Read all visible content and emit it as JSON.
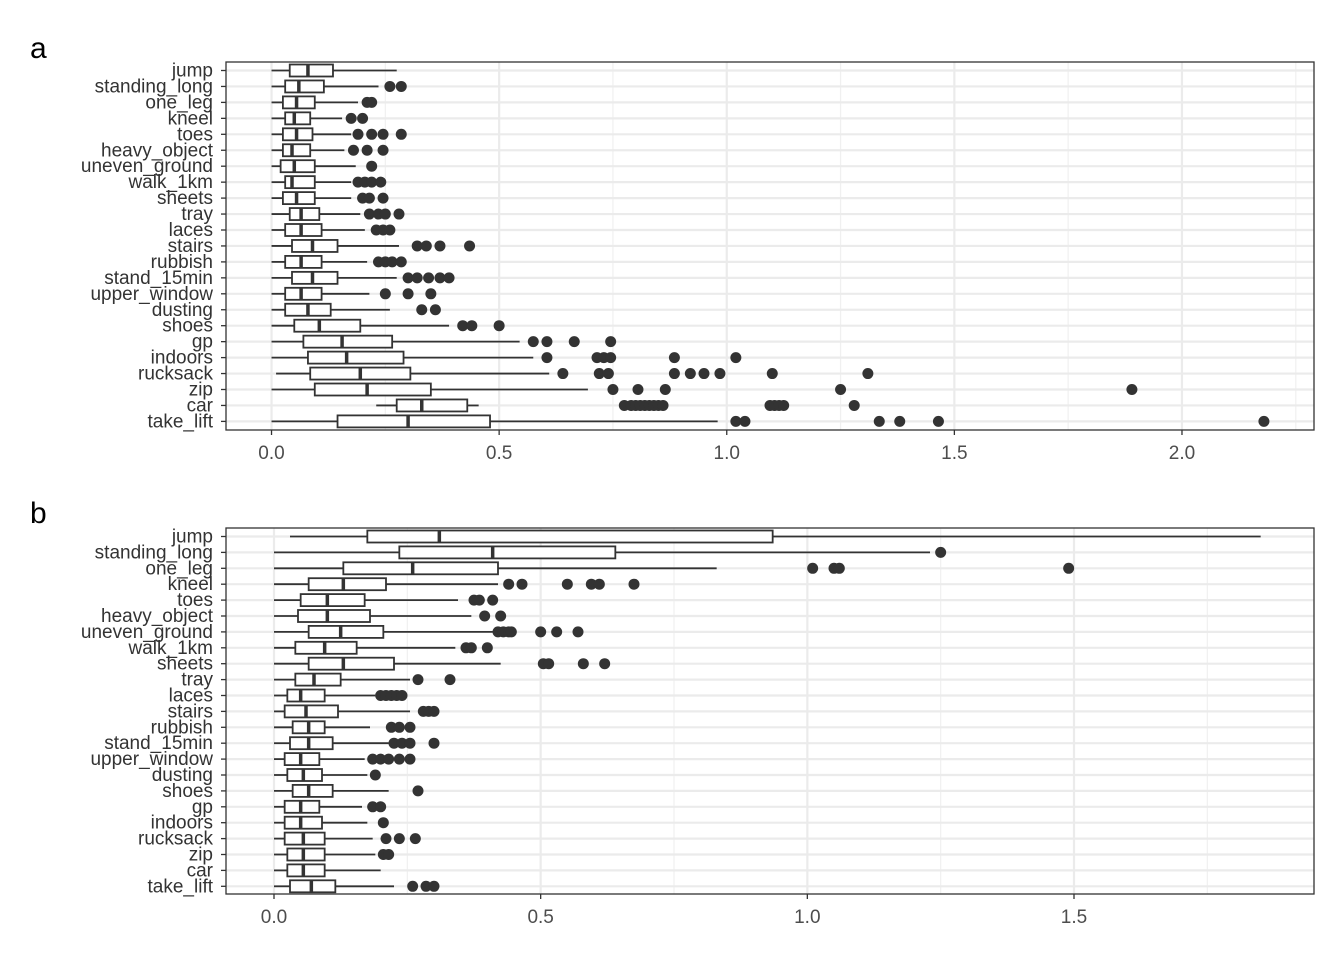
{
  "chart_data": [
    {
      "panel_label": "a",
      "type": "boxplot",
      "orientation": "horizontal",
      "xlim": [
        -0.1,
        2.29
      ],
      "xticks": [
        0.0,
        0.5,
        1.0,
        1.5,
        2.0
      ],
      "xtick_labels": [
        "0.0",
        "0.5",
        "1.0",
        "1.5",
        "2.0"
      ],
      "grid": true,
      "categories": [
        "jump",
        "standing_long",
        "one_leg",
        "kneel",
        "toes",
        "heavy_object",
        "uneven_ground",
        "walk_1km",
        "sheets",
        "tray",
        "laces",
        "stairs",
        "rubbish",
        "stand_15min",
        "upper_window",
        "dusting",
        "shoes",
        "gp",
        "indoors",
        "rucksack",
        "zip",
        "car",
        "take_lift"
      ],
      "boxes": [
        {
          "min": 0.0,
          "q1": 0.04,
          "median": 0.08,
          "q3": 0.135,
          "max": 0.275,
          "outliers": []
        },
        {
          "min": 0.0,
          "q1": 0.03,
          "median": 0.06,
          "q3": 0.115,
          "max": 0.235,
          "outliers": [
            0.26,
            0.285
          ]
        },
        {
          "min": 0.0,
          "q1": 0.025,
          "median": 0.055,
          "q3": 0.095,
          "max": 0.19,
          "outliers": [
            0.21,
            0.22
          ]
        },
        {
          "min": 0.0,
          "q1": 0.03,
          "median": 0.05,
          "q3": 0.085,
          "max": 0.155,
          "outliers": [
            0.175,
            0.2
          ]
        },
        {
          "min": 0.0,
          "q1": 0.025,
          "median": 0.055,
          "q3": 0.09,
          "max": 0.175,
          "outliers": [
            0.19,
            0.22,
            0.245,
            0.285
          ]
        },
        {
          "min": 0.0,
          "q1": 0.025,
          "median": 0.045,
          "q3": 0.085,
          "max": 0.16,
          "outliers": [
            0.18,
            0.21,
            0.245
          ]
        },
        {
          "min": 0.0,
          "q1": 0.02,
          "median": 0.05,
          "q3": 0.095,
          "max": 0.185,
          "outliers": [
            0.22
          ]
        },
        {
          "min": 0.0,
          "q1": 0.03,
          "median": 0.045,
          "q3": 0.095,
          "max": 0.175,
          "outliers": [
            0.19,
            0.205,
            0.22,
            0.24
          ]
        },
        {
          "min": 0.0,
          "q1": 0.025,
          "median": 0.055,
          "q3": 0.095,
          "max": 0.175,
          "outliers": [
            0.2,
            0.215,
            0.245
          ]
        },
        {
          "min": 0.0,
          "q1": 0.04,
          "median": 0.065,
          "q3": 0.105,
          "max": 0.195,
          "outliers": [
            0.215,
            0.235,
            0.25,
            0.28
          ]
        },
        {
          "min": 0.0,
          "q1": 0.03,
          "median": 0.065,
          "q3": 0.11,
          "max": 0.205,
          "outliers": [
            0.23,
            0.245,
            0.26
          ]
        },
        {
          "min": 0.0,
          "q1": 0.045,
          "median": 0.09,
          "q3": 0.145,
          "max": 0.28,
          "outliers": [
            0.32,
            0.34,
            0.37,
            0.435
          ]
        },
        {
          "min": 0.0,
          "q1": 0.03,
          "median": 0.065,
          "q3": 0.11,
          "max": 0.21,
          "outliers": [
            0.235,
            0.25,
            0.265,
            0.285
          ]
        },
        {
          "min": 0.0,
          "q1": 0.045,
          "median": 0.09,
          "q3": 0.145,
          "max": 0.275,
          "outliers": [
            0.3,
            0.32,
            0.345,
            0.37,
            0.39
          ]
        },
        {
          "min": 0.0,
          "q1": 0.03,
          "median": 0.065,
          "q3": 0.11,
          "max": 0.215,
          "outliers": [
            0.25,
            0.3,
            0.35
          ]
        },
        {
          "min": 0.0,
          "q1": 0.03,
          "median": 0.08,
          "q3": 0.13,
          "max": 0.26,
          "outliers": [
            0.33,
            0.36
          ]
        },
        {
          "min": 0.0,
          "q1": 0.05,
          "median": 0.105,
          "q3": 0.195,
          "max": 0.39,
          "outliers": [
            0.42,
            0.44,
            0.5
          ]
        },
        {
          "min": 0.0,
          "q1": 0.07,
          "median": 0.155,
          "q3": 0.265,
          "max": 0.545,
          "outliers": [
            0.575,
            0.605,
            0.665,
            0.745
          ]
        },
        {
          "min": 0.0,
          "q1": 0.08,
          "median": 0.165,
          "q3": 0.29,
          "max": 0.575,
          "outliers": [
            0.605,
            0.715,
            0.73,
            0.745,
            0.885,
            1.02
          ]
        },
        {
          "min": 0.01,
          "q1": 0.085,
          "median": 0.195,
          "q3": 0.305,
          "max": 0.61,
          "outliers": [
            0.64,
            0.72,
            0.74,
            0.885,
            0.92,
            0.95,
            0.985,
            1.1,
            1.31
          ]
        },
        {
          "min": 0.0,
          "q1": 0.095,
          "median": 0.21,
          "q3": 0.35,
          "max": 0.695,
          "outliers": [
            0.75,
            0.805,
            0.865,
            1.25,
            1.89
          ]
        },
        {
          "min": 0.23,
          "q1": 0.275,
          "median": 0.33,
          "q3": 0.43,
          "max": 0.455,
          "outliers": [
            0.775,
            0.79,
            0.8,
            0.81,
            0.82,
            0.83,
            0.84,
            0.85,
            0.86,
            1.095,
            1.105,
            1.115,
            1.125,
            1.28
          ]
        },
        {
          "min": 0.0,
          "q1": 0.145,
          "median": 0.3,
          "q3": 0.48,
          "max": 0.98,
          "outliers": [
            1.02,
            1.04,
            1.335,
            1.38,
            1.465,
            2.18
          ]
        }
      ]
    },
    {
      "panel_label": "b",
      "type": "boxplot",
      "orientation": "horizontal",
      "xlim": [
        -0.09,
        1.95
      ],
      "xticks": [
        0.0,
        0.5,
        1.0,
        1.5
      ],
      "xtick_labels": [
        "0.0",
        "0.5",
        "1.0",
        "1.5"
      ],
      "grid": true,
      "categories": [
        "jump",
        "standing_long",
        "one_leg",
        "kneel",
        "toes",
        "heavy_object",
        "uneven_ground",
        "walk_1km",
        "sheets",
        "tray",
        "laces",
        "stairs",
        "rubbish",
        "stand_15min",
        "upper_window",
        "dusting",
        "shoes",
        "gp",
        "indoors",
        "rucksack",
        "zip",
        "car",
        "take_lift"
      ],
      "boxes": [
        {
          "min": 0.03,
          "q1": 0.175,
          "median": 0.31,
          "q3": 0.935,
          "max": 1.85,
          "outliers": []
        },
        {
          "min": 0.0,
          "q1": 0.235,
          "median": 0.41,
          "q3": 0.64,
          "max": 1.23,
          "outliers": [
            1.25
          ]
        },
        {
          "min": 0.0,
          "q1": 0.13,
          "median": 0.26,
          "q3": 0.42,
          "max": 0.83,
          "outliers": [
            1.01,
            1.05,
            1.06,
            1.49
          ]
        },
        {
          "min": 0.0,
          "q1": 0.065,
          "median": 0.13,
          "q3": 0.21,
          "max": 0.42,
          "outliers": [
            0.44,
            0.465,
            0.55,
            0.595,
            0.61,
            0.675
          ]
        },
        {
          "min": 0.0,
          "q1": 0.05,
          "median": 0.1,
          "q3": 0.17,
          "max": 0.345,
          "outliers": [
            0.375,
            0.385,
            0.41
          ]
        },
        {
          "min": 0.0,
          "q1": 0.045,
          "median": 0.1,
          "q3": 0.18,
          "max": 0.37,
          "outliers": [
            0.395,
            0.425
          ]
        },
        {
          "min": 0.0,
          "q1": 0.065,
          "median": 0.125,
          "q3": 0.205,
          "max": 0.41,
          "outliers": [
            0.42,
            0.43,
            0.44,
            0.445,
            0.5,
            0.53,
            0.57
          ]
        },
        {
          "min": 0.0,
          "q1": 0.04,
          "median": 0.095,
          "q3": 0.155,
          "max": 0.34,
          "outliers": [
            0.36,
            0.37,
            0.4
          ]
        },
        {
          "min": 0.0,
          "q1": 0.065,
          "median": 0.13,
          "q3": 0.225,
          "max": 0.425,
          "outliers": [
            0.505,
            0.515,
            0.58,
            0.62
          ]
        },
        {
          "min": 0.0,
          "q1": 0.04,
          "median": 0.075,
          "q3": 0.125,
          "max": 0.255,
          "outliers": [
            0.27,
            0.33
          ]
        },
        {
          "min": 0.0,
          "q1": 0.025,
          "median": 0.05,
          "q3": 0.095,
          "max": 0.19,
          "outliers": [
            0.2,
            0.21,
            0.22,
            0.23,
            0.24
          ]
        },
        {
          "min": 0.0,
          "q1": 0.02,
          "median": 0.06,
          "q3": 0.12,
          "max": 0.255,
          "outliers": [
            0.28,
            0.29,
            0.3
          ]
        },
        {
          "min": 0.0,
          "q1": 0.035,
          "median": 0.065,
          "q3": 0.095,
          "max": 0.18,
          "outliers": [
            0.22,
            0.235,
            0.255
          ]
        },
        {
          "min": 0.0,
          "q1": 0.03,
          "median": 0.065,
          "q3": 0.11,
          "max": 0.215,
          "outliers": [
            0.225,
            0.24,
            0.255,
            0.3
          ]
        },
        {
          "min": 0.0,
          "q1": 0.02,
          "median": 0.05,
          "q3": 0.085,
          "max": 0.17,
          "outliers": [
            0.185,
            0.2,
            0.215,
            0.235,
            0.255
          ]
        },
        {
          "min": 0.0,
          "q1": 0.025,
          "median": 0.055,
          "q3": 0.09,
          "max": 0.175,
          "outliers": [
            0.19
          ]
        },
        {
          "min": 0.0,
          "q1": 0.035,
          "median": 0.065,
          "q3": 0.11,
          "max": 0.215,
          "outliers": [
            0.27
          ]
        },
        {
          "min": 0.0,
          "q1": 0.02,
          "median": 0.05,
          "q3": 0.085,
          "max": 0.165,
          "outliers": [
            0.185,
            0.2
          ]
        },
        {
          "min": 0.0,
          "q1": 0.02,
          "median": 0.05,
          "q3": 0.09,
          "max": 0.175,
          "outliers": [
            0.205
          ]
        },
        {
          "min": 0.0,
          "q1": 0.02,
          "median": 0.055,
          "q3": 0.095,
          "max": 0.185,
          "outliers": [
            0.21,
            0.235,
            0.265
          ]
        },
        {
          "min": 0.0,
          "q1": 0.025,
          "median": 0.055,
          "q3": 0.095,
          "max": 0.19,
          "outliers": [
            0.205,
            0.215
          ]
        },
        {
          "min": 0.0,
          "q1": 0.025,
          "median": 0.055,
          "q3": 0.095,
          "max": 0.2,
          "outliers": []
        },
        {
          "min": 0.0,
          "q1": 0.03,
          "median": 0.07,
          "q3": 0.115,
          "max": 0.225,
          "outliers": [
            0.26,
            0.285,
            0.3
          ]
        }
      ]
    }
  ]
}
